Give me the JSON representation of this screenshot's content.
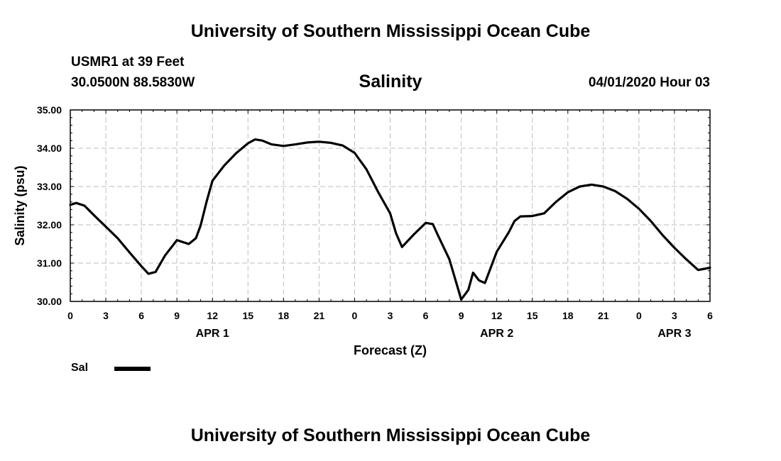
{
  "header": {
    "title": "University of Southern Mississippi Ocean Cube",
    "station": "USMR1 at 39 Feet",
    "coords": "30.0500N 88.5830W",
    "datetime": "04/01/2020 Hour 03"
  },
  "footer": {
    "title": "University of Southern Mississippi Ocean Cube"
  },
  "legend": {
    "label": "Sal",
    "color": "#000000"
  },
  "chart_data": {
    "type": "line",
    "title": "Salinity",
    "xlabel": "Forecast (Z)",
    "ylabel": "Salinity (psu)",
    "xlim": [
      0,
      54
    ],
    "ylim": [
      30.0,
      35.0
    ],
    "grid": true,
    "legend_position": "bottom-left",
    "x_ticks": [
      0,
      3,
      6,
      9,
      12,
      15,
      18,
      21,
      24,
      27,
      30,
      33,
      36,
      39,
      42,
      45,
      48,
      51,
      54
    ],
    "x_tick_labels": [
      "0",
      "3",
      "6",
      "9",
      "12",
      "15",
      "18",
      "21",
      "0",
      "3",
      "6",
      "9",
      "12",
      "15",
      "18",
      "21",
      "0",
      "3",
      "6"
    ],
    "date_labels": [
      {
        "x": 12,
        "label": "APR 1"
      },
      {
        "x": 36,
        "label": "APR 2"
      },
      {
        "x": 51,
        "label": "APR 3"
      }
    ],
    "y_ticks": [
      30.0,
      31.0,
      32.0,
      33.0,
      34.0,
      35.0
    ],
    "y_tick_labels": [
      "30.00",
      "31.00",
      "32.00",
      "33.00",
      "34.00",
      "35.00"
    ],
    "series": [
      {
        "name": "Sal",
        "x": [
          0,
          0.5,
          1.2,
          2,
          3,
          4,
          5,
          6,
          6.6,
          7.2,
          8,
          9,
          10,
          10.6,
          11,
          11.5,
          12,
          13,
          14,
          15,
          15.6,
          16.2,
          17,
          18,
          19,
          20,
          21,
          22,
          23,
          24,
          25,
          26,
          27,
          27.5,
          28,
          29,
          30,
          30.6,
          31,
          32,
          33,
          33.6,
          34,
          34.5,
          35,
          36,
          37,
          37.5,
          38,
          39,
          40,
          41,
          42,
          43,
          44,
          45,
          46,
          47,
          48,
          49,
          50,
          51,
          52,
          53,
          54
        ],
        "values": [
          32.52,
          32.57,
          32.5,
          32.25,
          31.95,
          31.65,
          31.28,
          30.92,
          30.72,
          30.77,
          31.2,
          31.6,
          31.5,
          31.65,
          31.98,
          32.6,
          33.15,
          33.55,
          33.87,
          34.13,
          34.23,
          34.2,
          34.1,
          34.06,
          34.1,
          34.15,
          34.17,
          34.14,
          34.07,
          33.88,
          33.45,
          32.85,
          32.3,
          31.78,
          31.42,
          31.75,
          32.05,
          32.02,
          31.75,
          31.1,
          30.05,
          30.3,
          30.75,
          30.55,
          30.48,
          31.3,
          31.8,
          32.1,
          32.22,
          32.23,
          32.3,
          32.6,
          32.85,
          33.0,
          33.05,
          33.0,
          32.88,
          32.68,
          32.42,
          32.1,
          31.73,
          31.4,
          31.1,
          30.82,
          30.88
        ]
      }
    ]
  }
}
